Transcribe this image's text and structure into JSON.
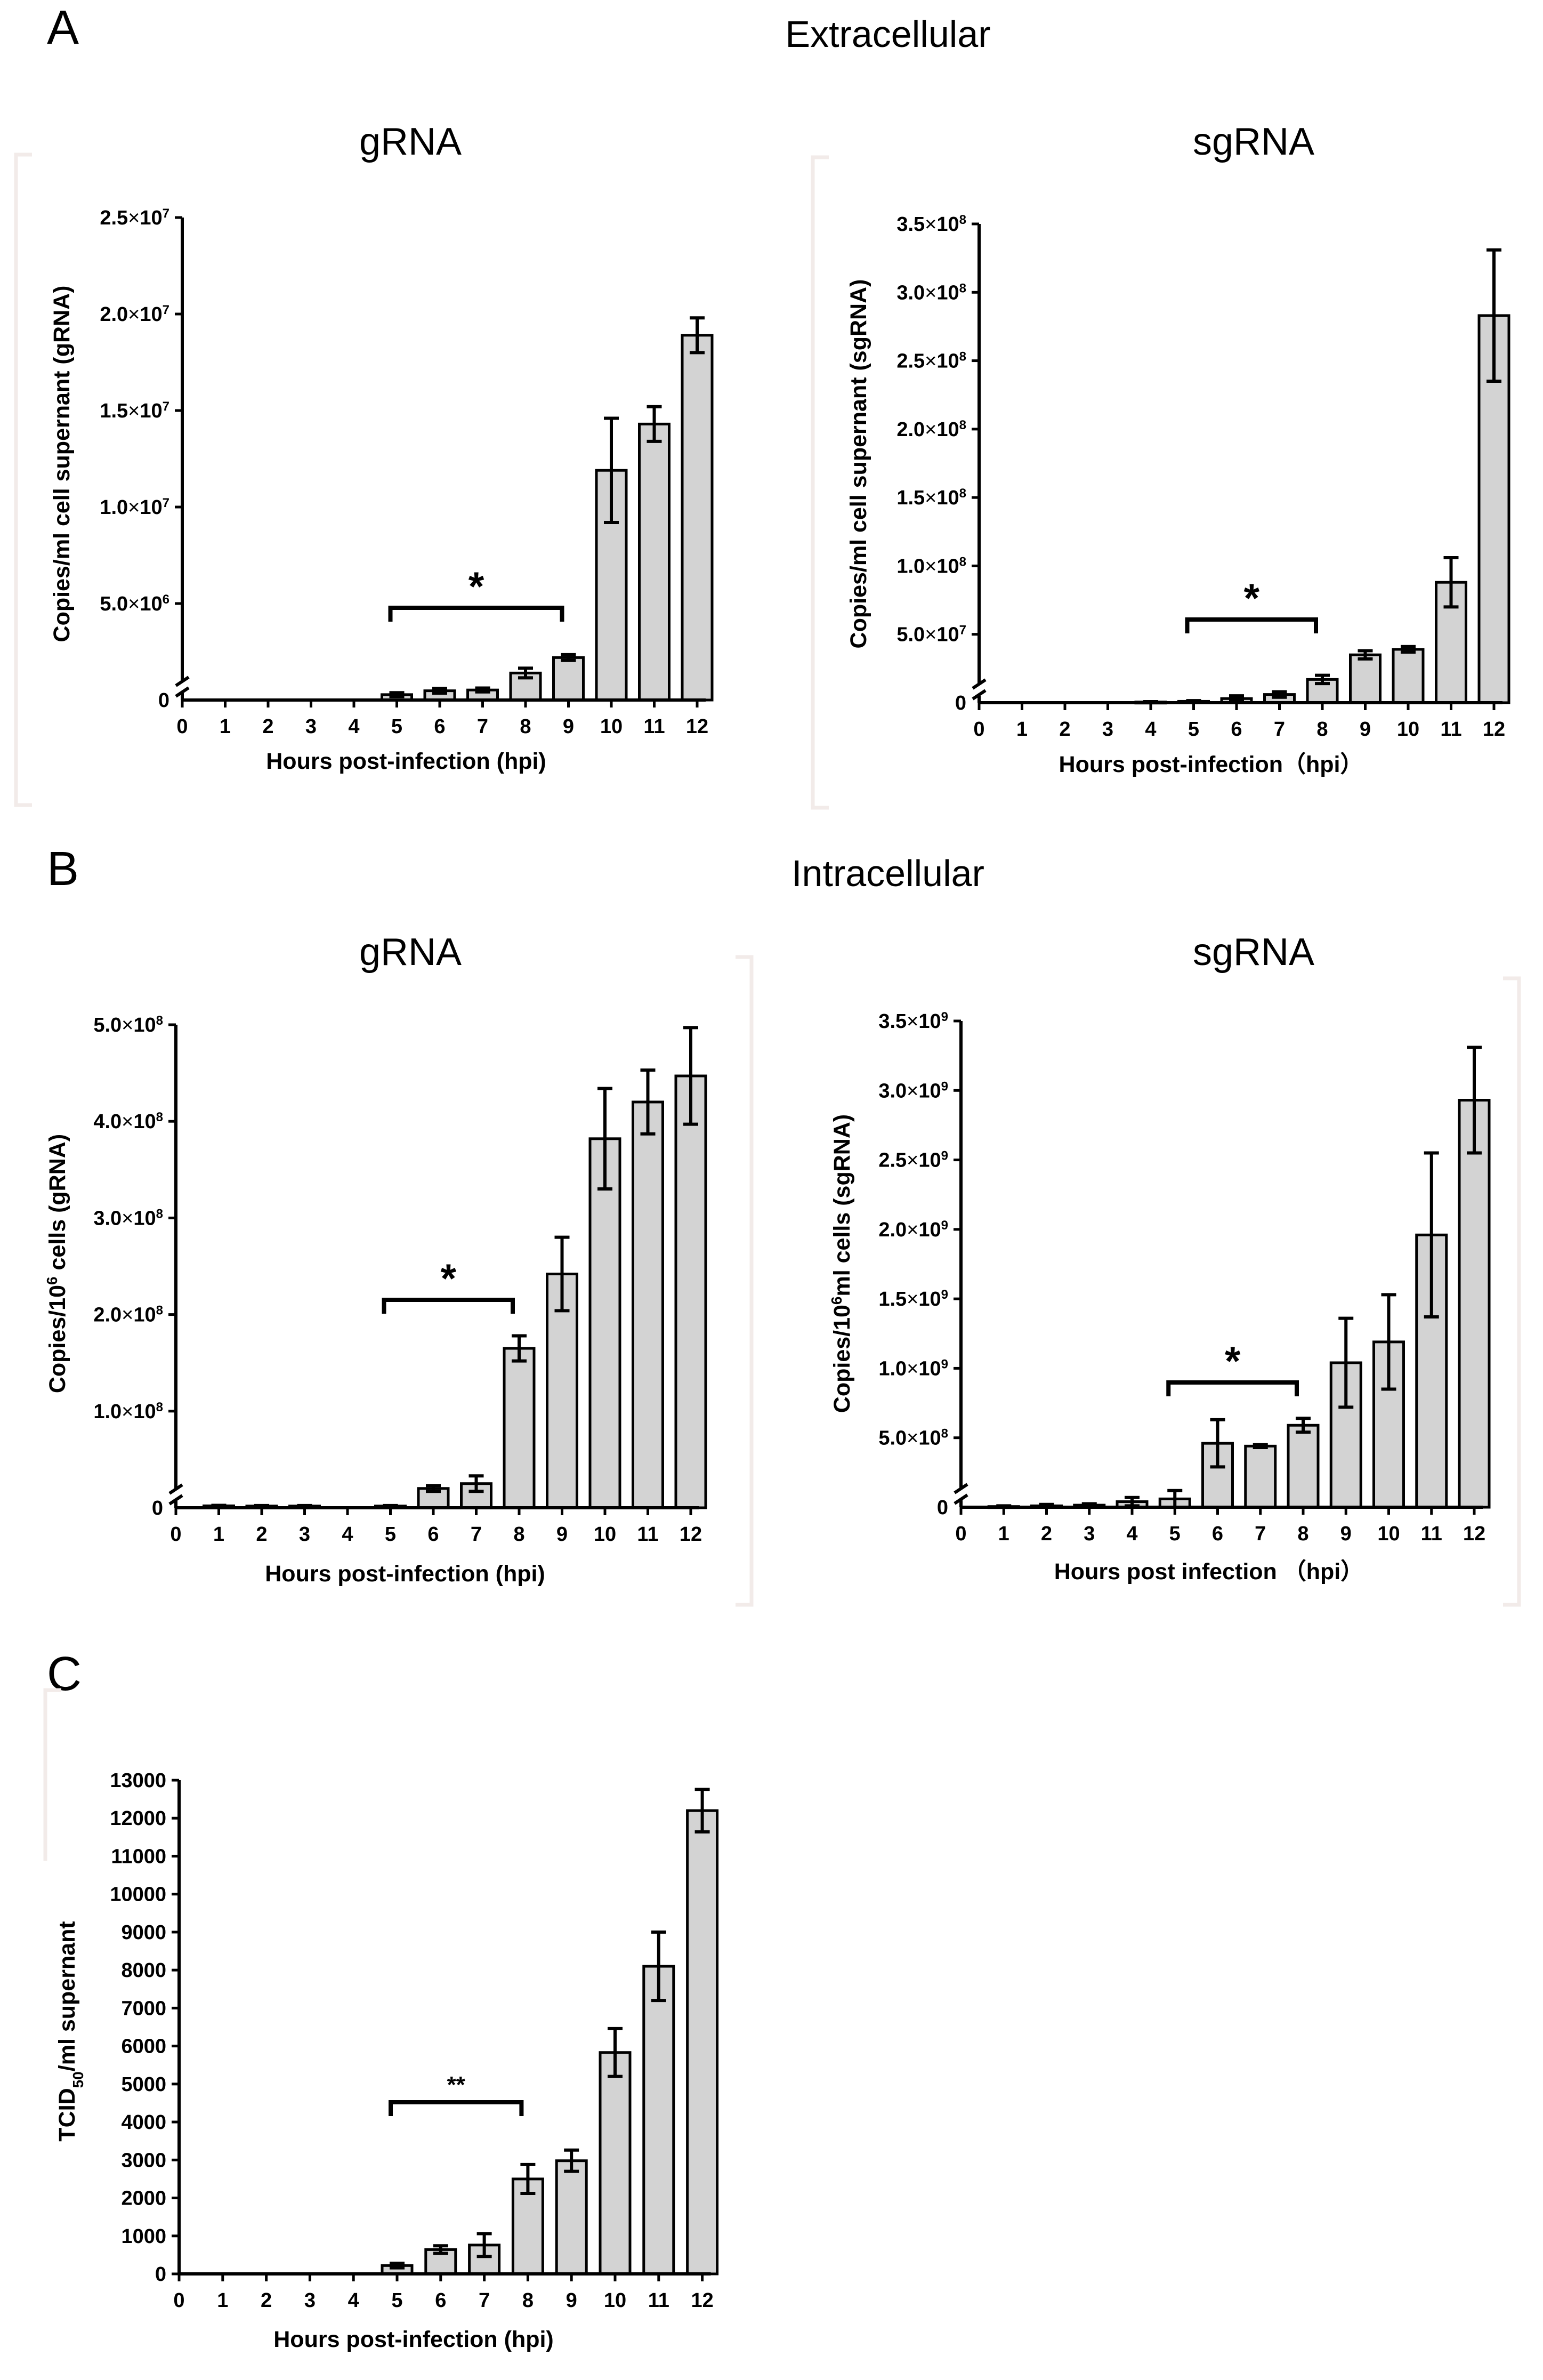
{
  "panels": {
    "A": {
      "letter": "A",
      "title": "Extracellular"
    },
    "B": {
      "letter": "B",
      "title": "Intracellular"
    },
    "C": {
      "letter": "C",
      "title": ""
    }
  },
  "chart_data": [
    {
      "id": "A-gRNA",
      "type": "bar",
      "title": "gRNA",
      "xlabel": "Hours post-infection (hpi)",
      "ylabel": "Copies/ml cell supernant (gRNA)",
      "categories": [
        "0",
        "1",
        "2",
        "3",
        "4",
        "5",
        "6",
        "7",
        "8",
        "9",
        "10",
        "11",
        "12"
      ],
      "values": [
        0,
        0,
        0,
        0,
        0,
        280000,
        480000,
        520000,
        1400000,
        2200000,
        11900000,
        14300000,
        18900000
      ],
      "errors": [
        0,
        0,
        0,
        0,
        0,
        100000,
        120000,
        100000,
        250000,
        150000,
        2700000,
        900000,
        900000
      ],
      "ylim": [
        0,
        25000000
      ],
      "yticks": [
        {
          "value": 5000000,
          "mantissa": "5.0",
          "exponent": "6"
        },
        {
          "value": 10000000,
          "mantissa": "1.0",
          "exponent": "7"
        },
        {
          "value": 15000000,
          "mantissa": "1.5",
          "exponent": "7"
        },
        {
          "value": 20000000,
          "mantissa": "2.0",
          "exponent": "7"
        },
        {
          "value": 25000000,
          "mantissa": "2.5",
          "exponent": "7"
        }
      ],
      "zero_label": "0",
      "axis_break": true,
      "significance": {
        "from": "5",
        "to": "9",
        "label": "*"
      }
    },
    {
      "id": "A-sgRNA",
      "type": "bar",
      "title": "sgRNA",
      "xlabel": "Hours post-infection（hpi）",
      "ylabel": "Copies/ml cell supernant (sgRNA)",
      "categories": [
        "0",
        "1",
        "2",
        "3",
        "4",
        "5",
        "6",
        "7",
        "8",
        "9",
        "10",
        "11",
        "12"
      ],
      "values": [
        0,
        0,
        0,
        0,
        500000,
        1000000,
        3000000,
        6000000,
        17000000,
        35000000,
        39000000,
        88000000,
        283000000
      ],
      "errors": [
        0,
        0,
        0,
        0,
        300000,
        500000,
        2000000,
        2000000,
        3000000,
        3000000,
        2000000,
        18000000,
        48000000
      ],
      "ylim": [
        0,
        350000000
      ],
      "yticks": [
        {
          "value": 50000000,
          "mantissa": "5.0",
          "exponent": "7"
        },
        {
          "value": 100000000,
          "mantissa": "1.0",
          "exponent": "8"
        },
        {
          "value": 150000000,
          "mantissa": "1.5",
          "exponent": "8"
        },
        {
          "value": 200000000,
          "mantissa": "2.0",
          "exponent": "8"
        },
        {
          "value": 250000000,
          "mantissa": "2.5",
          "exponent": "8"
        },
        {
          "value": 300000000,
          "mantissa": "3.0",
          "exponent": "8"
        },
        {
          "value": 350000000,
          "mantissa": "3.5",
          "exponent": "8"
        }
      ],
      "zero_label": "0",
      "axis_break": true,
      "significance": {
        "from": "5",
        "to": "8",
        "label": "*"
      }
    },
    {
      "id": "B-gRNA",
      "type": "bar",
      "title": "gRNA",
      "xlabel": "Hours post-infection (hpi)",
      "ylabel_parts": [
        "Copies/10",
        "6",
        " cells (gRNA)"
      ],
      "categories": [
        "0",
        "1",
        "2",
        "3",
        "4",
        "5",
        "6",
        "7",
        "8",
        "9",
        "10",
        "11",
        "12"
      ],
      "values": [
        0,
        2000000,
        1800000,
        1800000,
        0,
        1800000,
        20000000,
        25000000,
        165000000,
        242000000,
        382000000,
        420000000,
        447000000
      ],
      "errors": [
        0,
        500000,
        500000,
        500000,
        0,
        500000,
        3000000,
        8000000,
        13000000,
        38000000,
        52000000,
        33000000,
        50000000
      ],
      "ylim": [
        0,
        500000000
      ],
      "yticks": [
        {
          "value": 100000000,
          "mantissa": "1.0",
          "exponent": "8"
        },
        {
          "value": 200000000,
          "mantissa": "2.0",
          "exponent": "8"
        },
        {
          "value": 300000000,
          "mantissa": "3.0",
          "exponent": "8"
        },
        {
          "value": 400000000,
          "mantissa": "4.0",
          "exponent": "8"
        },
        {
          "value": 500000000,
          "mantissa": "5.0",
          "exponent": "8"
        }
      ],
      "zero_label": "0",
      "axis_break": true,
      "significance": {
        "from": "5",
        "to": "8",
        "label": "*"
      }
    },
    {
      "id": "B-sgRNA",
      "type": "bar",
      "title": "sgRNA",
      "xlabel": "Hours post infection （hpi）",
      "ylabel_parts": [
        "Copies/10",
        "6",
        "ml cells (sgRNA)"
      ],
      "categories": [
        "0",
        "1",
        "2",
        "3",
        "4",
        "5",
        "6",
        "7",
        "8",
        "9",
        "10",
        "11",
        "12"
      ],
      "values": [
        0,
        5000000,
        10000000,
        15000000,
        40000000,
        60000000,
        460000000,
        440000000,
        590000000,
        1040000000,
        1190000000,
        1960000000,
        2930000000
      ],
      "errors": [
        0,
        5000000,
        10000000,
        10000000,
        30000000,
        60000000,
        170000000,
        10000000,
        50000000,
        320000000,
        340000000,
        590000000,
        380000000
      ],
      "ylim": [
        0,
        3500000000
      ],
      "yticks": [
        {
          "value": 500000000,
          "mantissa": "5.0",
          "exponent": "8"
        },
        {
          "value": 1000000000,
          "mantissa": "1.0",
          "exponent": "9"
        },
        {
          "value": 1500000000,
          "mantissa": "1.5",
          "exponent": "9"
        },
        {
          "value": 2000000000,
          "mantissa": "2.0",
          "exponent": "9"
        },
        {
          "value": 2500000000,
          "mantissa": "2.5",
          "exponent": "9"
        },
        {
          "value": 3000000000,
          "mantissa": "3.0",
          "exponent": "9"
        },
        {
          "value": 3500000000,
          "mantissa": "3.5",
          "exponent": "9"
        }
      ],
      "zero_label": "0",
      "axis_break": true,
      "significance": {
        "from": "5",
        "to": "8",
        "label": "*"
      }
    },
    {
      "id": "C-TCID",
      "type": "bar",
      "title": "",
      "xlabel": "Hours post-infection (hpi)",
      "ylabel_parts": [
        "TCID",
        "50",
        "/ml supernant"
      ],
      "categories": [
        "0",
        "1",
        "2",
        "3",
        "4",
        "5",
        "6",
        "7",
        "8",
        "9",
        "10",
        "11",
        "12"
      ],
      "values": [
        0,
        0,
        0,
        0,
        0,
        220,
        640,
        760,
        2500,
        2980,
        5830,
        8100,
        12200
      ],
      "errors": [
        0,
        0,
        0,
        0,
        0,
        60,
        100,
        300,
        380,
        280,
        630,
        900,
        560
      ],
      "ylim": [
        0,
        13000
      ],
      "yticks": [
        {
          "value": 0,
          "label": "0"
        },
        {
          "value": 1000,
          "label": "1000"
        },
        {
          "value": 2000,
          "label": "2000"
        },
        {
          "value": 3000,
          "label": "3000"
        },
        {
          "value": 4000,
          "label": "4000"
        },
        {
          "value": 5000,
          "label": "5000"
        },
        {
          "value": 6000,
          "label": "6000"
        },
        {
          "value": 7000,
          "label": "7000"
        },
        {
          "value": 8000,
          "label": "8000"
        },
        {
          "value": 9000,
          "label": "9000"
        },
        {
          "value": 10000,
          "label": "10000"
        },
        {
          "value": 11000,
          "label": "11000"
        },
        {
          "value": 12000,
          "label": "12000"
        },
        {
          "value": 13000,
          "label": "13000"
        }
      ],
      "axis_break": false,
      "significance": {
        "from": "5",
        "to": "8",
        "label": "**"
      }
    }
  ]
}
